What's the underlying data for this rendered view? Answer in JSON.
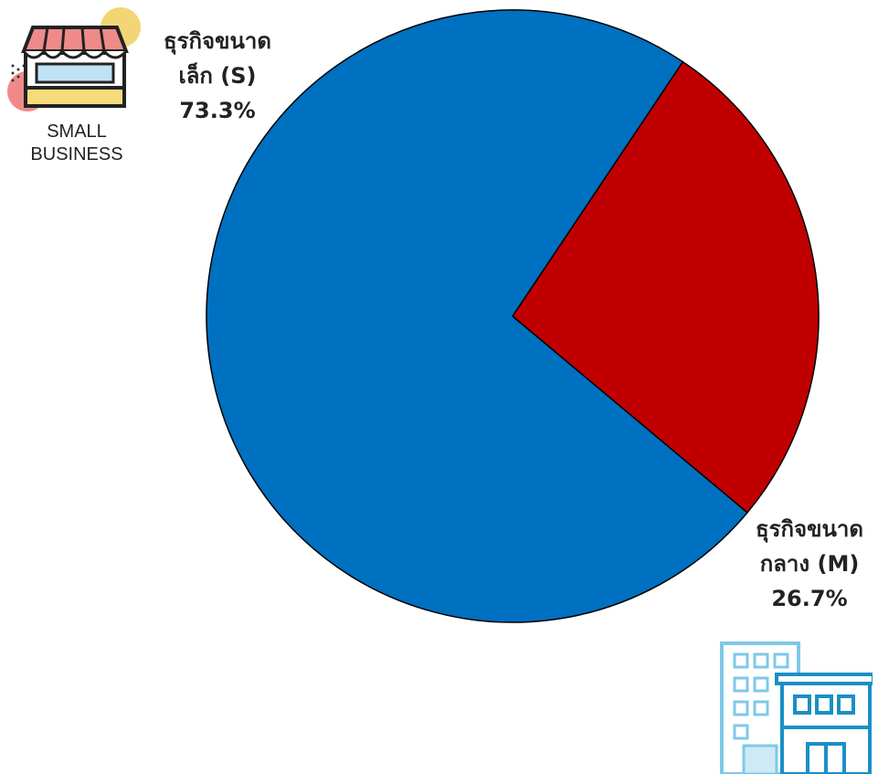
{
  "chart_data": {
    "type": "pie",
    "title": "",
    "slices": [
      {
        "line1": "ธุรกิจขนาด",
        "line2": "เล็ก (S)",
        "value": 73.3,
        "value_label": "73.3%",
        "color": "#0070C0"
      },
      {
        "line1": "ธุรกิจขนาด",
        "line2": "กลาง (M)",
        "value": 26.7,
        "value_label": "26.7%",
        "color": "#C00000"
      }
    ],
    "start_angle_deg": 56.2,
    "direction": "clockwise-from-red-start"
  },
  "icons": {
    "small_business": {
      "name": "small-business-shop-icon",
      "caption_line1": "SMALL",
      "caption_line2": "BUSINESS"
    },
    "medium_business": {
      "name": "office-building-icon"
    }
  }
}
